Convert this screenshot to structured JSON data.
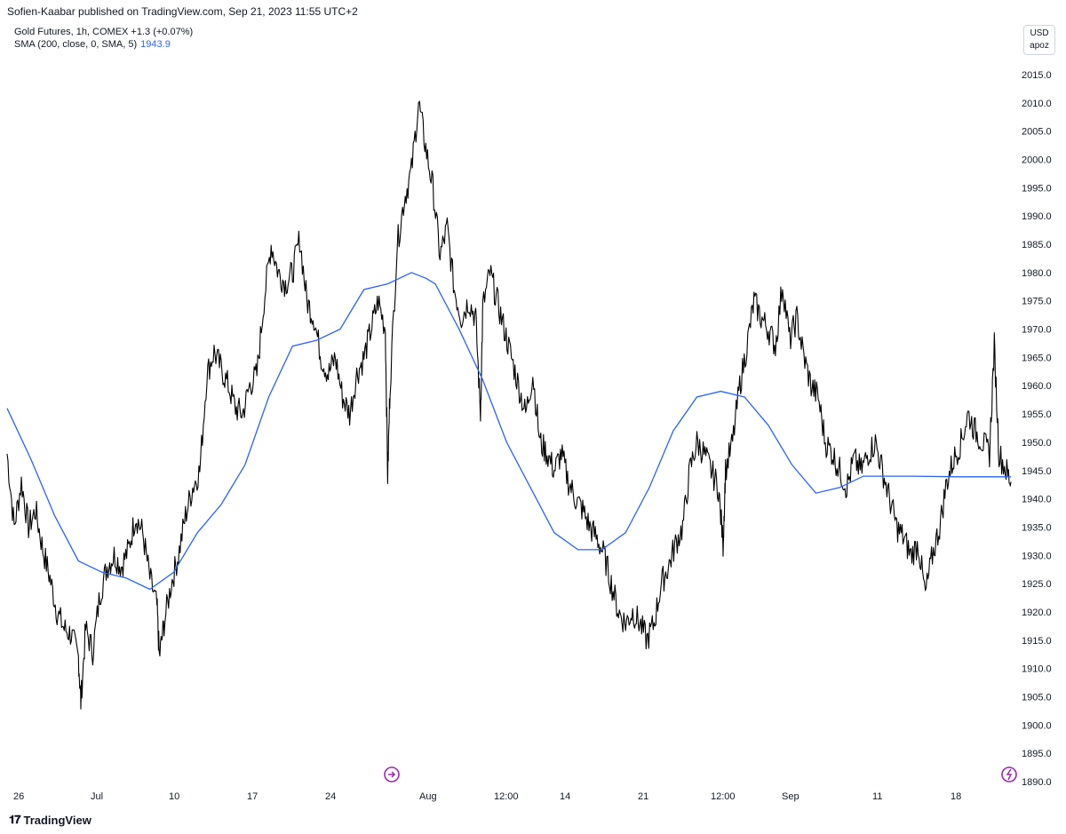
{
  "header": {
    "publisher_line": "Sofien-Kaabar published on TradingView.com, Sep 21, 2023 11:55 UTC+2"
  },
  "legend": {
    "symbol_line": "Gold Futures, 1h, COMEX  +1.3 (+0.07%)",
    "sma_line": "SMA (200, close, 0, SMA, 5)",
    "sma_value": "1943.9"
  },
  "scale_badge": {
    "currency": "USD",
    "mode": "apoz"
  },
  "footer": {
    "logo_text": "TradingView"
  },
  "colors": {
    "price": "#000000",
    "sma": "#2962ff",
    "event_icon": "#9c27b0"
  },
  "chart_data": {
    "type": "line",
    "title": "Gold Futures, 1h, COMEX",
    "ylabel": "USD",
    "ylim": [
      1890,
      2015
    ],
    "y_ticks": [
      "2015.0",
      "2010.0",
      "2005.0",
      "2000.0",
      "1995.0",
      "1990.0",
      "1985.0",
      "1980.0",
      "1975.0",
      "1970.0",
      "1965.0",
      "1960.0",
      "1955.0",
      "1950.0",
      "1945.0",
      "1940.0",
      "1935.0",
      "1930.0",
      "1925.0",
      "1920.0",
      "1915.0",
      "1910.0",
      "1905.0",
      "1900.0",
      "1895.0",
      "1890.0"
    ],
    "x_ticks": [
      "26",
      "Jul",
      "10",
      "17",
      "24",
      "Aug",
      "12:00",
      "14",
      "21",
      "12:00",
      "Sep",
      "11",
      "18"
    ],
    "grid": false,
    "series": [
      {
        "name": "Gold Futures",
        "style": "candles",
        "points": [
          [
            0,
            1948
          ],
          [
            1.5,
            1935
          ],
          [
            3,
            1943
          ],
          [
            4.5,
            1935
          ],
          [
            6,
            1938
          ],
          [
            7.5,
            1931
          ],
          [
            9,
            1926
          ],
          [
            10.5,
            1920
          ],
          [
            12,
            1917
          ],
          [
            13.5,
            1916
          ],
          [
            15,
            1912
          ],
          [
            15.5,
            1904
          ],
          [
            16.5,
            1917
          ],
          [
            18,
            1913
          ],
          [
            19.5,
            1923
          ],
          [
            21,
            1928
          ],
          [
            22.5,
            1930
          ],
          [
            24,
            1928
          ],
          [
            25.5,
            1931
          ],
          [
            27,
            1937
          ],
          [
            28.5,
            1934
          ],
          [
            30,
            1926
          ],
          [
            31.5,
            1921
          ],
          [
            32,
            1912
          ],
          [
            33,
            1918
          ],
          [
            34.5,
            1925
          ],
          [
            36,
            1930
          ],
          [
            37.5,
            1937
          ],
          [
            39,
            1942
          ],
          [
            40.5,
            1945
          ],
          [
            42,
            1962
          ],
          [
            43.5,
            1966
          ],
          [
            45,
            1963
          ],
          [
            46.5,
            1960
          ],
          [
            48,
            1956
          ],
          [
            49.5,
            1955
          ],
          [
            51,
            1960
          ],
          [
            52.5,
            1962
          ],
          [
            54,
            1975
          ],
          [
            55.5,
            1985
          ],
          [
            57,
            1980
          ],
          [
            58.5,
            1978
          ],
          [
            60,
            1980
          ],
          [
            61.5,
            1986
          ],
          [
            63,
            1975
          ],
          [
            64.5,
            1972
          ],
          [
            66,
            1965
          ],
          [
            67.5,
            1962
          ],
          [
            69,
            1965
          ],
          [
            70.5,
            1958
          ],
          [
            72,
            1955
          ],
          [
            73.5,
            1962
          ],
          [
            75,
            1965
          ],
          [
            76.5,
            1970
          ],
          [
            78,
            1975
          ],
          [
            79.5,
            1970
          ],
          [
            80,
            1944
          ],
          [
            80.5,
            1960
          ],
          [
            82,
            1985
          ],
          [
            83.5,
            1993
          ],
          [
            85,
            1998
          ],
          [
            86.5,
            2010
          ],
          [
            88,
            2002
          ],
          [
            89.5,
            1995
          ],
          [
            91,
            1983
          ],
          [
            92.5,
            1988
          ],
          [
            94,
            1977
          ],
          [
            95.5,
            1972
          ],
          [
            97,
            1975
          ],
          [
            98.5,
            1972
          ],
          [
            99.5,
            1955
          ],
          [
            100,
            1974
          ],
          [
            101.5,
            1980
          ],
          [
            103,
            1975
          ],
          [
            104.5,
            1970
          ],
          [
            106,
            1965
          ],
          [
            107.5,
            1960
          ],
          [
            109,
            1955
          ],
          [
            110.5,
            1962
          ],
          [
            112,
            1950
          ],
          [
            113.5,
            1948
          ],
          [
            115,
            1945
          ],
          [
            116.5,
            1948
          ],
          [
            118,
            1943
          ],
          [
            119.5,
            1940
          ],
          [
            121,
            1938
          ],
          [
            122.5,
            1935
          ],
          [
            124,
            1933
          ],
          [
            125.5,
            1930
          ],
          [
            127,
            1925
          ],
          [
            128.5,
            1920
          ],
          [
            130,
            1918
          ],
          [
            131.5,
            1920
          ],
          [
            133,
            1918
          ],
          [
            134.5,
            1915
          ],
          [
            136,
            1918
          ],
          [
            137.5,
            1925
          ],
          [
            139,
            1928
          ],
          [
            140.5,
            1932
          ],
          [
            142,
            1935
          ],
          [
            143.5,
            1945
          ],
          [
            145,
            1950
          ],
          [
            146.5,
            1948
          ],
          [
            148,
            1945
          ],
          [
            149.5,
            1942
          ],
          [
            150.5,
            1932
          ],
          [
            151,
            1945
          ],
          [
            152.5,
            1950
          ],
          [
            154,
            1960
          ],
          [
            155.5,
            1967
          ],
          [
            157,
            1975
          ],
          [
            158.5,
            1972
          ],
          [
            160,
            1970
          ],
          [
            161.5,
            1967
          ],
          [
            163,
            1978
          ],
          [
            164.5,
            1968
          ],
          [
            166,
            1972
          ],
          [
            167.5,
            1965
          ],
          [
            169,
            1960
          ],
          [
            170.5,
            1958
          ],
          [
            172,
            1950
          ],
          [
            173.5,
            1948
          ],
          [
            175,
            1945
          ],
          [
            176.5,
            1942
          ],
          [
            178,
            1947
          ],
          [
            179.5,
            1945
          ],
          [
            181,
            1948
          ],
          [
            182.5,
            1950
          ],
          [
            184,
            1945
          ],
          [
            185.5,
            1940
          ],
          [
            187,
            1935
          ],
          [
            188.5,
            1933
          ],
          [
            190,
            1930
          ],
          [
            191.5,
            1932
          ],
          [
            193,
            1923
          ],
          [
            194.5,
            1930
          ],
          [
            196,
            1935
          ],
          [
            197.5,
            1943
          ],
          [
            199,
            1947
          ],
          [
            200.5,
            1950
          ],
          [
            202,
            1955
          ],
          [
            203.5,
            1952
          ],
          [
            205,
            1950
          ],
          [
            206.5,
            1948
          ],
          [
            207.5,
            1967
          ],
          [
            208.5,
            1948
          ],
          [
            210,
            1945
          ],
          [
            211,
            1943
          ]
        ]
      },
      {
        "name": "SMA (200, close, 0, SMA, 5)",
        "style": "line",
        "points": [
          [
            0,
            1956
          ],
          [
            5,
            1947
          ],
          [
            10,
            1937
          ],
          [
            15,
            1929
          ],
          [
            20,
            1927
          ],
          [
            25,
            1926
          ],
          [
            30,
            1924
          ],
          [
            35,
            1927
          ],
          [
            40,
            1934
          ],
          [
            45,
            1939
          ],
          [
            50,
            1946
          ],
          [
            55,
            1958
          ],
          [
            60,
            1967
          ],
          [
            65,
            1968
          ],
          [
            70,
            1970
          ],
          [
            75,
            1977
          ],
          [
            80,
            1978
          ],
          [
            85,
            1980
          ],
          [
            88,
            1979
          ],
          [
            90,
            1978
          ],
          [
            95,
            1970
          ],
          [
            100,
            1961
          ],
          [
            105,
            1950
          ],
          [
            110,
            1942
          ],
          [
            115,
            1934
          ],
          [
            120,
            1931
          ],
          [
            125,
            1931
          ],
          [
            130,
            1934
          ],
          [
            135,
            1942
          ],
          [
            140,
            1952
          ],
          [
            145,
            1958
          ],
          [
            150,
            1959
          ],
          [
            155,
            1958
          ],
          [
            160,
            1953
          ],
          [
            165,
            1946
          ],
          [
            170,
            1941
          ],
          [
            175,
            1942
          ],
          [
            180,
            1944
          ],
          [
            185,
            1944
          ],
          [
            190,
            1944
          ],
          [
            200,
            1943.9
          ],
          [
            211,
            1943.9
          ]
        ]
      }
    ]
  }
}
